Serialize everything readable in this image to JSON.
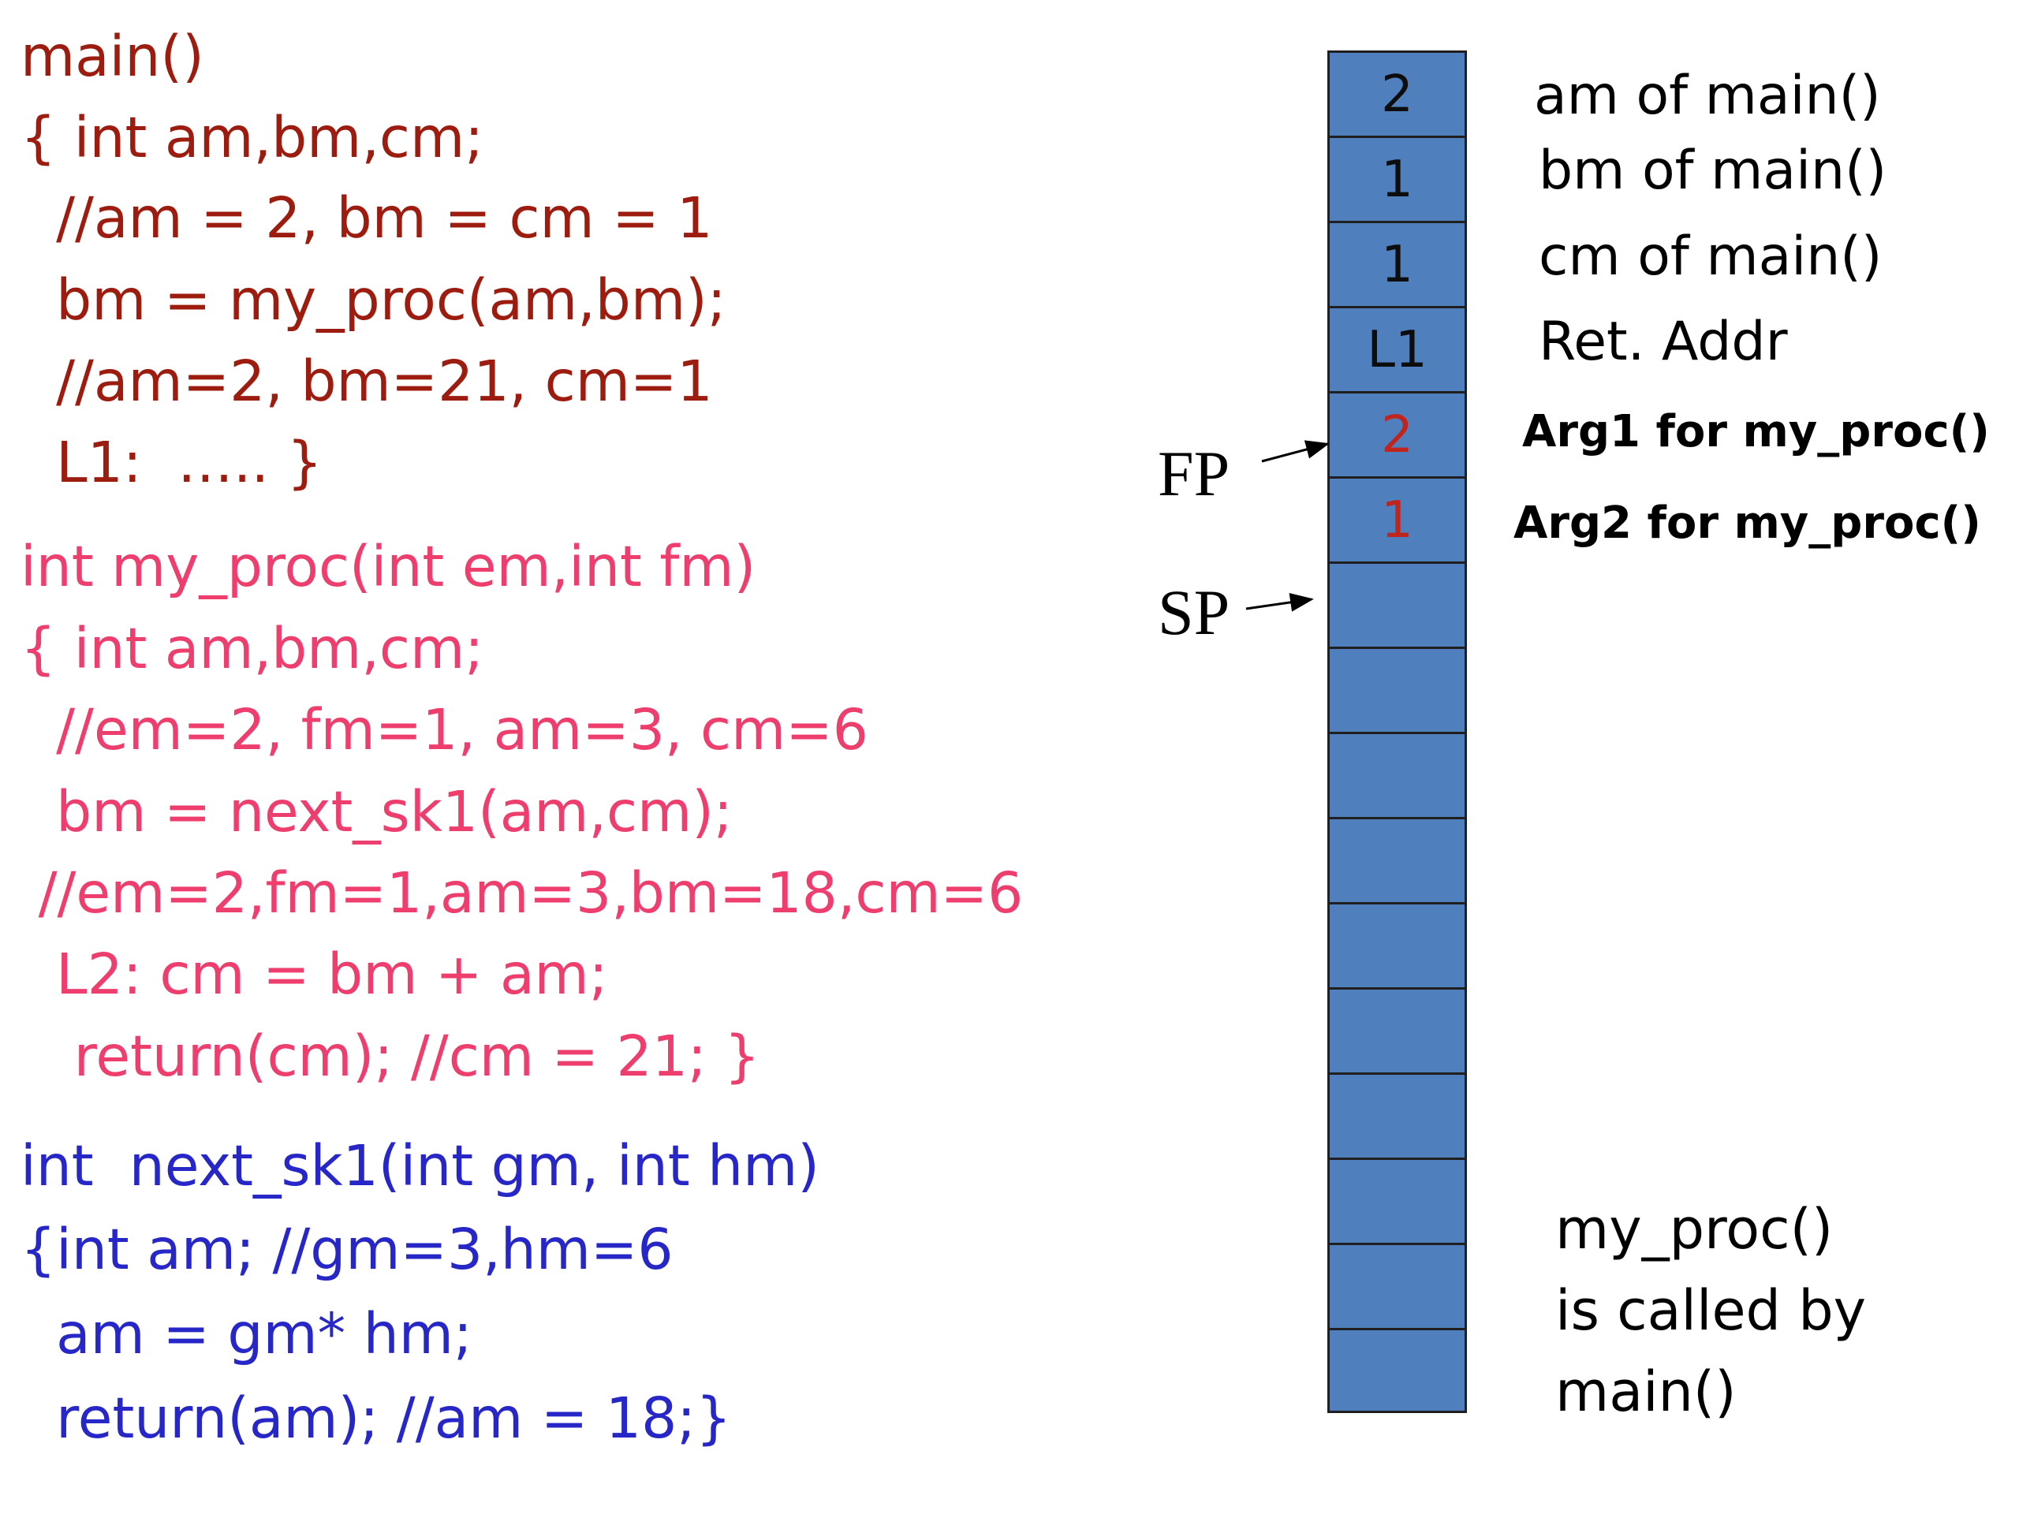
{
  "code": {
    "main": [
      "main()",
      "{ int am,bm,cm;",
      "  //am = 2, bm = cm = 1",
      "  bm = my_proc(am,bm);",
      "  //am=2, bm=21, cm=1",
      "  L1:  ….. }"
    ],
    "my_proc": [
      "int my_proc(int em,int fm)",
      "{ int am,bm,cm;",
      "  //em=2, fm=1, am=3, cm=6",
      "  bm = next_sk1(am,cm);",
      " //em=2,fm=1,am=3,bm=18,cm=6",
      "  L2: cm = bm + am;",
      "   return(cm); //cm = 21; }"
    ],
    "next_sk1": [
      "int  next_sk1(int gm, int hm)",
      "{int am; //gm=3,hm=6",
      "  am = gm* hm;",
      "  return(am); //am = 18;}"
    ]
  },
  "stack": {
    "cells": [
      "2",
      "1",
      "1",
      "L1",
      "2",
      "1",
      "",
      "",
      "",
      "",
      "",
      "",
      "",
      "",
      "",
      ""
    ],
    "labels": [
      "am of main()",
      "bm of main()",
      "cm of main()",
      "Ret. Addr",
      "Arg1 for my_proc()",
      "Arg2 for my_proc()"
    ]
  },
  "pointers": {
    "fp": "FP",
    "sp": "SP"
  },
  "note": [
    "my_proc()",
    "is called by",
    "main()"
  ],
  "colors": {
    "main_code": "#9c1c10",
    "my_proc_code": "#ee3e6e",
    "next_sk1_code": "#2727c8",
    "stack_fill": "#4f80bd",
    "arg_value": "#c0241a"
  }
}
